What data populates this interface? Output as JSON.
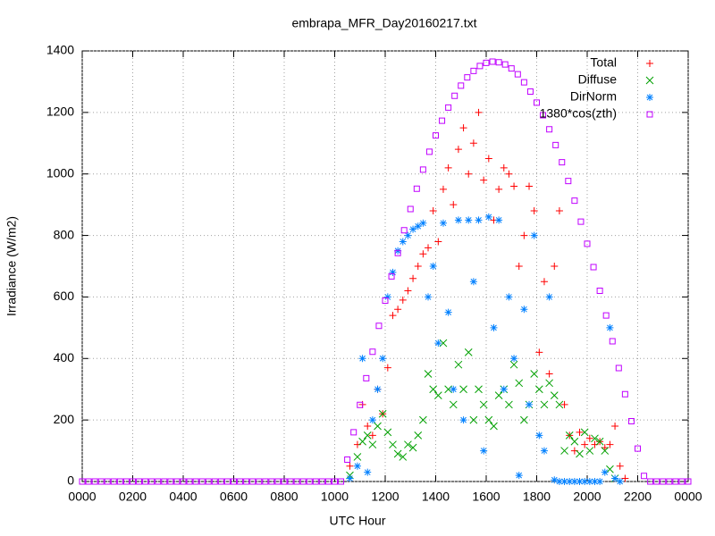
{
  "chart_data": {
    "type": "scatter",
    "title": "embrapa_MFR_Day20160217.txt",
    "x_label": "UTC Hour",
    "y_label": "Irradiance (W/m2)",
    "xlim": [
      0,
      24
    ],
    "ylim": [
      0,
      1400
    ],
    "xticks": [
      {
        "value": 0,
        "label": "0000"
      },
      {
        "value": 2,
        "label": "0200"
      },
      {
        "value": 4,
        "label": "0400"
      },
      {
        "value": 6,
        "label": "0600"
      },
      {
        "value": 8,
        "label": "0800"
      },
      {
        "value": 10,
        "label": "1000"
      },
      {
        "value": 12,
        "label": "1200"
      },
      {
        "value": 14,
        "label": "1400"
      },
      {
        "value": 16,
        "label": "1600"
      },
      {
        "value": 18,
        "label": "1800"
      },
      {
        "value": 20,
        "label": "2000"
      },
      {
        "value": 22,
        "label": "2200"
      },
      {
        "value": 24,
        "label": "0000"
      }
    ],
    "yticks": [
      0,
      200,
      400,
      600,
      800,
      1000,
      1200,
      1400
    ],
    "grid": true,
    "legend": "top-right",
    "series": [
      {
        "name": "Total",
        "color": "#ff0000",
        "marker": "plus",
        "x": [
          10.6,
          10.9,
          11.1,
          11.3,
          11.5,
          11.7,
          11.9,
          12.1,
          12.3,
          12.5,
          12.7,
          12.9,
          13.1,
          13.3,
          13.5,
          13.7,
          13.9,
          14.1,
          14.3,
          14.5,
          14.7,
          14.9,
          15.1,
          15.3,
          15.5,
          15.7,
          15.9,
          16.1,
          16.3,
          16.5,
          16.7,
          16.9,
          17.1,
          17.3,
          17.5,
          17.7,
          17.9,
          18.1,
          18.3,
          18.5,
          18.7,
          18.9,
          19.1,
          19.3,
          19.5,
          19.7,
          19.9,
          20.1,
          20.3,
          20.5,
          20.7,
          20.9,
          21.1,
          21.3,
          21.5
        ],
        "values": [
          50,
          120,
          250,
          180,
          150,
          300,
          220,
          370,
          540,
          560,
          590,
          620,
          660,
          700,
          740,
          760,
          880,
          780,
          950,
          1020,
          900,
          1080,
          1150,
          1000,
          1100,
          1200,
          980,
          1050,
          850,
          950,
          1020,
          1000,
          960,
          700,
          800,
          960,
          880,
          420,
          650,
          350,
          700,
          880,
          250,
          150,
          100,
          160,
          120,
          140,
          120,
          130,
          110,
          120,
          180,
          50,
          10
        ]
      },
      {
        "name": "Diffuse",
        "color": "#00a000",
        "marker": "cross",
        "x": [
          10.6,
          10.9,
          11.1,
          11.3,
          11.5,
          11.7,
          11.9,
          12.1,
          12.3,
          12.5,
          12.7,
          12.9,
          13.1,
          13.3,
          13.5,
          13.7,
          13.9,
          14.1,
          14.3,
          14.5,
          14.7,
          14.9,
          15.1,
          15.3,
          15.5,
          15.7,
          15.9,
          16.1,
          16.3,
          16.5,
          16.7,
          16.9,
          17.1,
          17.3,
          17.5,
          17.7,
          17.9,
          18.1,
          18.3,
          18.5,
          18.7,
          18.9,
          19.1,
          19.3,
          19.5,
          19.7,
          19.9,
          20.1,
          20.3,
          20.5,
          20.7,
          20.9,
          21.1
        ],
        "values": [
          20,
          80,
          130,
          150,
          120,
          180,
          220,
          160,
          120,
          90,
          80,
          120,
          110,
          150,
          200,
          350,
          300,
          280,
          450,
          300,
          250,
          380,
          300,
          420,
          200,
          300,
          250,
          200,
          180,
          280,
          300,
          250,
          380,
          320,
          200,
          250,
          350,
          300,
          250,
          320,
          280,
          250,
          100,
          150,
          130,
          90,
          160,
          100,
          140,
          130,
          100,
          40,
          10
        ]
      },
      {
        "name": "DirNorm",
        "color": "#0080ff",
        "marker": "star",
        "x": [
          10.6,
          10.9,
          11.1,
          11.3,
          11.5,
          11.7,
          11.9,
          12.1,
          12.3,
          12.5,
          12.7,
          12.9,
          13.1,
          13.3,
          13.5,
          13.7,
          13.9,
          14.1,
          14.3,
          14.5,
          14.7,
          14.9,
          15.1,
          15.3,
          15.5,
          15.7,
          15.9,
          16.1,
          16.3,
          16.5,
          16.7,
          16.9,
          17.1,
          17.3,
          17.5,
          17.7,
          17.9,
          18.1,
          18.3,
          18.5,
          18.7,
          18.9,
          19.1,
          19.3,
          19.5,
          19.7,
          19.9,
          20.1,
          20.3,
          20.5,
          20.7,
          20.9,
          21.1,
          21.3
        ],
        "values": [
          10,
          50,
          400,
          30,
          200,
          300,
          400,
          600,
          680,
          750,
          780,
          800,
          820,
          830,
          840,
          600,
          700,
          450,
          840,
          550,
          300,
          850,
          200,
          850,
          650,
          850,
          100,
          860,
          500,
          850,
          300,
          600,
          400,
          20,
          560,
          250,
          800,
          150,
          100,
          600,
          5,
          0,
          0,
          0,
          0,
          0,
          0,
          0,
          0,
          0,
          30,
          500,
          10,
          0
        ]
      },
      {
        "name": "1380*cos(zth)",
        "color": "#c000ff",
        "marker": "square",
        "x": [
          0,
          0.25,
          0.5,
          0.75,
          1,
          1.25,
          1.5,
          1.75,
          2,
          2.25,
          2.5,
          2.75,
          3,
          3.25,
          3.5,
          3.75,
          4,
          4.25,
          4.5,
          4.75,
          5,
          5.25,
          5.5,
          5.75,
          6,
          6.25,
          6.5,
          6.75,
          7,
          7.25,
          7.5,
          7.75,
          8,
          8.25,
          8.5,
          8.75,
          9,
          9.25,
          9.5,
          9.75,
          10,
          10.25,
          10.5,
          10.75,
          11,
          11.25,
          11.5,
          11.75,
          12,
          12.25,
          12.5,
          12.75,
          13,
          13.25,
          13.5,
          13.75,
          14,
          14.25,
          14.5,
          14.75,
          15,
          15.25,
          15.5,
          15.75,
          16,
          16.25,
          16.5,
          16.75,
          17,
          17.25,
          17.5,
          17.75,
          18,
          18.25,
          18.5,
          18.75,
          19,
          19.25,
          19.5,
          19.75,
          20,
          20.25,
          20.5,
          20.75,
          21,
          21.25,
          21.5,
          21.75,
          22,
          22.25,
          22.5,
          22.75,
          23,
          23.25,
          23.5,
          23.75,
          24
        ],
        "values": [
          0,
          0,
          0,
          0,
          0,
          0,
          0,
          0,
          0,
          0,
          0,
          0,
          0,
          0,
          0,
          0,
          0,
          0,
          0,
          0,
          0,
          0,
          0,
          0,
          0,
          0,
          0,
          0,
          0,
          0,
          0,
          0,
          0,
          0,
          0,
          0,
          0,
          0,
          0,
          0,
          0,
          0,
          71,
          160,
          249,
          336,
          422,
          506,
          588,
          667,
          743,
          817,
          886,
          952,
          1014,
          1072,
          1125,
          1173,
          1216,
          1254,
          1287,
          1314,
          1335,
          1351,
          1361,
          1365,
          1363,
          1356,
          1343,
          1324,
          1298,
          1268,
          1232,
          1191,
          1145,
          1094,
          1038,
          977,
          913,
          845,
          773,
          697,
          620,
          540,
          456,
          369,
          284,
          196,
          107,
          18,
          0,
          0,
          0,
          0,
          0,
          0,
          0
        ]
      }
    ]
  }
}
